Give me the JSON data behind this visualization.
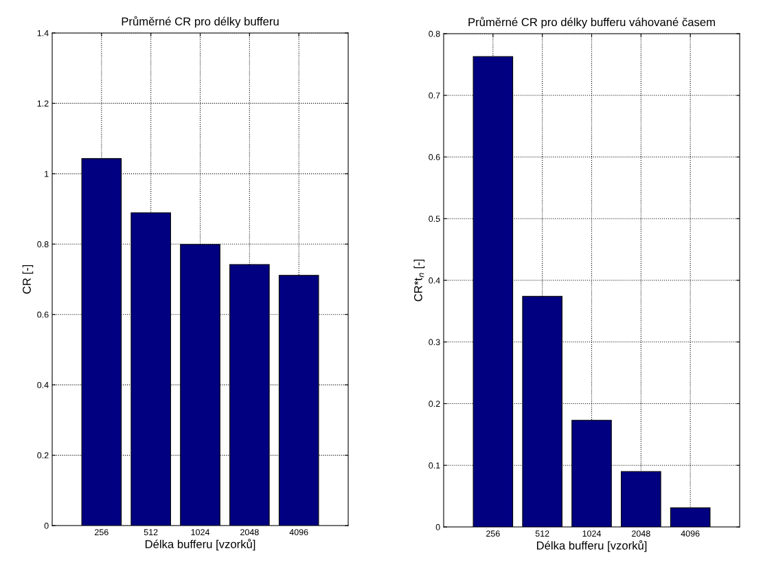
{
  "chart_data": [
    {
      "type": "bar",
      "title": "Průměrné CR pro délky bufferu",
      "xlabel": "Délka bufferu [vzorků]",
      "ylabel": "CR [-]",
      "categories": [
        "256",
        "512",
        "1024",
        "2048",
        "4096"
      ],
      "series": [
        {
          "color": "#000080",
          "values": [
            1.043,
            0.889,
            0.799,
            0.742,
            0.711
          ]
        }
      ],
      "ylim": [
        0,
        1.4
      ],
      "yticks": [
        0,
        0.2,
        0.4,
        0.6,
        0.8,
        1,
        1.2,
        1.4
      ],
      "grid": true
    },
    {
      "type": "bar",
      "title": "Průměrné CR pro délky bufferu váhované časem",
      "xlabel": "Délka bufferu [vzorků]",
      "ylabel": "CR*t$_{n}$ [-]",
      "categories": [
        "256",
        "512",
        "1024",
        "2048",
        "4096"
      ],
      "series": [
        {
          "color": "#000080",
          "values": [
            0.763,
            0.374,
            0.173,
            0.09,
            0.031
          ]
        }
      ],
      "ylim": [
        0,
        0.8
      ],
      "yticks": [
        0,
        0.1,
        0.2,
        0.3,
        0.4,
        0.5,
        0.6,
        0.7,
        0.8
      ],
      "grid": true
    }
  ]
}
